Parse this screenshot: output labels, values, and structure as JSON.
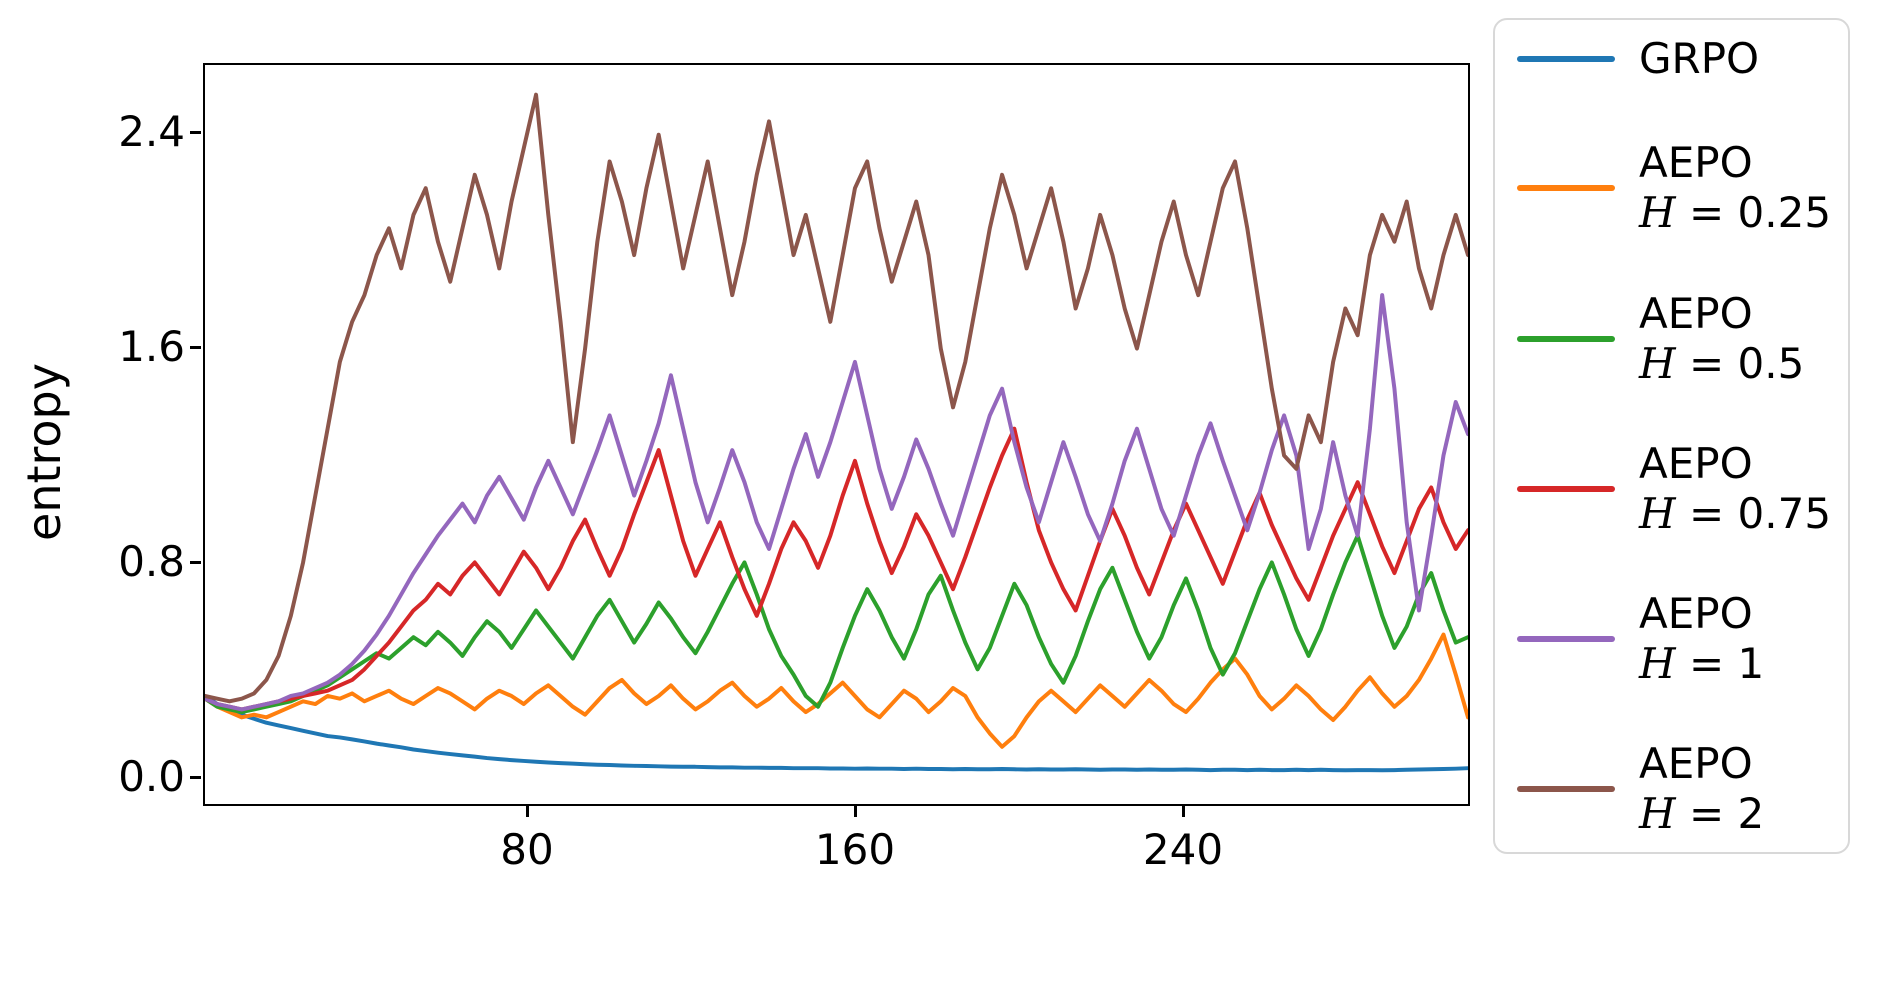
{
  "figure": {
    "background": "#ffffff"
  },
  "chart_data": {
    "type": "line",
    "title": "",
    "xlabel": "",
    "ylabel": "entropy",
    "grid": false,
    "legend_position": "outside-right",
    "xlim": [
      1,
      310
    ],
    "ylim": [
      -0.104,
      2.661
    ],
    "x_ticks": [
      {
        "value": 80,
        "label": "80"
      },
      {
        "value": 160,
        "label": "160"
      },
      {
        "value": 240,
        "label": "240"
      }
    ],
    "y_ticks": [
      {
        "value": 0.0,
        "label": "0.0"
      },
      {
        "value": 0.8,
        "label": "0.8"
      },
      {
        "value": 1.6,
        "label": "1.6"
      },
      {
        "value": 2.4,
        "label": "2.4"
      }
    ],
    "x": {
      "start": 1,
      "step": 3,
      "count": 104
    },
    "series": [
      {
        "id": "grpo",
        "label": "GRPO",
        "h_symbol": "",
        "h_value": "",
        "color": "#1f77b4",
        "values": [
          0.3,
          0.27,
          0.25,
          0.23,
          0.215,
          0.2,
          0.19,
          0.18,
          0.17,
          0.16,
          0.15,
          0.145,
          0.138,
          0.13,
          0.122,
          0.115,
          0.108,
          0.1,
          0.094,
          0.088,
          0.083,
          0.078,
          0.073,
          0.068,
          0.064,
          0.06,
          0.057,
          0.054,
          0.051,
          0.049,
          0.047,
          0.045,
          0.043,
          0.042,
          0.04,
          0.039,
          0.038,
          0.037,
          0.036,
          0.035,
          0.035,
          0.034,
          0.033,
          0.033,
          0.032,
          0.032,
          0.031,
          0.031,
          0.03,
          0.03,
          0.03,
          0.029,
          0.029,
          0.028,
          0.029,
          0.028,
          0.028,
          0.027,
          0.028,
          0.027,
          0.027,
          0.026,
          0.027,
          0.026,
          0.026,
          0.027,
          0.026,
          0.025,
          0.026,
          0.025,
          0.025,
          0.026,
          0.025,
          0.024,
          0.025,
          0.025,
          0.024,
          0.025,
          0.024,
          0.024,
          0.025,
          0.024,
          0.023,
          0.024,
          0.024,
          0.023,
          0.024,
          0.023,
          0.023,
          0.024,
          0.023,
          0.024,
          0.023,
          0.022,
          0.023,
          0.023,
          0.022,
          0.023,
          0.024,
          0.025,
          0.026,
          0.027,
          0.028,
          0.03
        ]
      },
      {
        "id": "aepo-025",
        "label": "AEPO",
        "h_symbol": "H",
        "h_value": " = 0.25",
        "color": "#ff7f0e",
        "values": [
          0.29,
          0.26,
          0.24,
          0.22,
          0.23,
          0.22,
          0.24,
          0.26,
          0.28,
          0.27,
          0.3,
          0.29,
          0.31,
          0.28,
          0.3,
          0.32,
          0.29,
          0.27,
          0.3,
          0.33,
          0.31,
          0.28,
          0.25,
          0.29,
          0.32,
          0.3,
          0.27,
          0.31,
          0.34,
          0.3,
          0.26,
          0.23,
          0.28,
          0.33,
          0.36,
          0.31,
          0.27,
          0.3,
          0.34,
          0.29,
          0.25,
          0.28,
          0.32,
          0.35,
          0.3,
          0.26,
          0.29,
          0.33,
          0.28,
          0.24,
          0.27,
          0.31,
          0.35,
          0.3,
          0.25,
          0.22,
          0.27,
          0.32,
          0.29,
          0.24,
          0.28,
          0.33,
          0.3,
          0.22,
          0.16,
          0.11,
          0.15,
          0.22,
          0.28,
          0.32,
          0.28,
          0.24,
          0.29,
          0.34,
          0.3,
          0.26,
          0.31,
          0.36,
          0.32,
          0.27,
          0.24,
          0.29,
          0.35,
          0.4,
          0.44,
          0.38,
          0.3,
          0.25,
          0.29,
          0.34,
          0.3,
          0.25,
          0.21,
          0.26,
          0.32,
          0.37,
          0.31,
          0.26,
          0.3,
          0.36,
          0.44,
          0.53,
          0.38,
          0.22
        ]
      },
      {
        "id": "aepo-05",
        "label": "AEPO",
        "h_symbol": "H",
        "h_value": " = 0.5",
        "color": "#2ca02c",
        "values": [
          0.29,
          0.26,
          0.25,
          0.24,
          0.25,
          0.26,
          0.27,
          0.28,
          0.3,
          0.32,
          0.34,
          0.37,
          0.4,
          0.43,
          0.46,
          0.44,
          0.48,
          0.52,
          0.49,
          0.54,
          0.5,
          0.45,
          0.52,
          0.58,
          0.54,
          0.48,
          0.55,
          0.62,
          0.56,
          0.5,
          0.44,
          0.52,
          0.6,
          0.66,
          0.58,
          0.5,
          0.57,
          0.65,
          0.59,
          0.52,
          0.46,
          0.54,
          0.63,
          0.72,
          0.8,
          0.68,
          0.55,
          0.45,
          0.38,
          0.3,
          0.26,
          0.35,
          0.48,
          0.6,
          0.7,
          0.62,
          0.52,
          0.44,
          0.55,
          0.68,
          0.75,
          0.62,
          0.5,
          0.4,
          0.48,
          0.6,
          0.72,
          0.64,
          0.52,
          0.42,
          0.35,
          0.45,
          0.58,
          0.7,
          0.78,
          0.66,
          0.54,
          0.44,
          0.52,
          0.64,
          0.74,
          0.62,
          0.48,
          0.38,
          0.46,
          0.58,
          0.7,
          0.8,
          0.68,
          0.55,
          0.45,
          0.55,
          0.68,
          0.8,
          0.9,
          0.75,
          0.6,
          0.48,
          0.56,
          0.68,
          0.76,
          0.62,
          0.5,
          0.52
        ]
      },
      {
        "id": "aepo-075",
        "label": "AEPO",
        "h_symbol": "H",
        "h_value": " = 0.75",
        "color": "#d62728",
        "values": [
          0.29,
          0.27,
          0.26,
          0.25,
          0.26,
          0.27,
          0.28,
          0.29,
          0.3,
          0.31,
          0.32,
          0.34,
          0.36,
          0.4,
          0.45,
          0.5,
          0.56,
          0.62,
          0.66,
          0.72,
          0.68,
          0.75,
          0.8,
          0.74,
          0.68,
          0.76,
          0.84,
          0.78,
          0.7,
          0.78,
          0.88,
          0.96,
          0.85,
          0.75,
          0.85,
          0.98,
          1.1,
          1.22,
          1.05,
          0.88,
          0.75,
          0.85,
          0.95,
          0.82,
          0.7,
          0.6,
          0.72,
          0.85,
          0.95,
          0.88,
          0.78,
          0.9,
          1.05,
          1.18,
          1.02,
          0.88,
          0.76,
          0.86,
          0.98,
          0.9,
          0.8,
          0.7,
          0.82,
          0.95,
          1.08,
          1.2,
          1.3,
          1.1,
          0.92,
          0.8,
          0.7,
          0.62,
          0.75,
          0.88,
          1.0,
          0.9,
          0.78,
          0.68,
          0.8,
          0.92,
          1.02,
          0.92,
          0.82,
          0.72,
          0.84,
          0.96,
          1.06,
          0.94,
          0.84,
          0.74,
          0.66,
          0.78,
          0.9,
          1.0,
          1.1,
          0.98,
          0.86,
          0.76,
          0.88,
          1.0,
          1.08,
          0.95,
          0.85,
          0.92
        ]
      },
      {
        "id": "aepo-1",
        "label": "AEPO",
        "h_symbol": "H",
        "h_value": " = 1",
        "color": "#9467bd",
        "values": [
          0.29,
          0.27,
          0.26,
          0.25,
          0.26,
          0.27,
          0.28,
          0.3,
          0.31,
          0.33,
          0.35,
          0.38,
          0.42,
          0.47,
          0.53,
          0.6,
          0.68,
          0.76,
          0.83,
          0.9,
          0.96,
          1.02,
          0.95,
          1.05,
          1.12,
          1.04,
          0.96,
          1.08,
          1.18,
          1.08,
          0.98,
          1.1,
          1.22,
          1.35,
          1.2,
          1.05,
          1.18,
          1.32,
          1.5,
          1.3,
          1.1,
          0.95,
          1.08,
          1.22,
          1.1,
          0.95,
          0.85,
          1.0,
          1.15,
          1.28,
          1.12,
          1.25,
          1.4,
          1.55,
          1.35,
          1.15,
          1.0,
          1.12,
          1.26,
          1.15,
          1.02,
          0.9,
          1.05,
          1.2,
          1.35,
          1.45,
          1.25,
          1.08,
          0.95,
          1.1,
          1.25,
          1.12,
          0.98,
          0.88,
          1.02,
          1.18,
          1.3,
          1.15,
          1.0,
          0.9,
          1.05,
          1.2,
          1.32,
          1.18,
          1.05,
          0.92,
          1.06,
          1.22,
          1.35,
          1.2,
          0.85,
          1.0,
          1.25,
          1.05,
          0.9,
          1.3,
          1.8,
          1.45,
          0.95,
          0.62,
          0.9,
          1.2,
          1.4,
          1.28
        ]
      },
      {
        "id": "aepo-2",
        "label": "AEPO",
        "h_symbol": "H",
        "h_value": " = 2",
        "color": "#8c564b",
        "values": [
          0.3,
          0.29,
          0.28,
          0.29,
          0.31,
          0.36,
          0.45,
          0.6,
          0.8,
          1.05,
          1.3,
          1.55,
          1.7,
          1.8,
          1.95,
          2.05,
          1.9,
          2.1,
          2.2,
          2.0,
          1.85,
          2.05,
          2.25,
          2.1,
          1.9,
          2.15,
          2.35,
          2.55,
          2.1,
          1.7,
          1.25,
          1.6,
          2.0,
          2.3,
          2.15,
          1.95,
          2.2,
          2.4,
          2.15,
          1.9,
          2.1,
          2.3,
          2.05,
          1.8,
          2.0,
          2.25,
          2.45,
          2.2,
          1.95,
          2.1,
          1.9,
          1.7,
          1.95,
          2.2,
          2.3,
          2.05,
          1.85,
          2.0,
          2.15,
          1.95,
          1.6,
          1.38,
          1.55,
          1.8,
          2.05,
          2.25,
          2.1,
          1.9,
          2.05,
          2.2,
          2.0,
          1.75,
          1.9,
          2.1,
          1.95,
          1.75,
          1.6,
          1.8,
          2.0,
          2.15,
          1.95,
          1.8,
          2.0,
          2.2,
          2.3,
          2.05,
          1.75,
          1.45,
          1.2,
          1.15,
          1.35,
          1.25,
          1.55,
          1.75,
          1.65,
          1.95,
          2.1,
          2.0,
          2.15,
          1.9,
          1.75,
          1.95,
          2.1,
          1.95
        ]
      }
    ]
  }
}
